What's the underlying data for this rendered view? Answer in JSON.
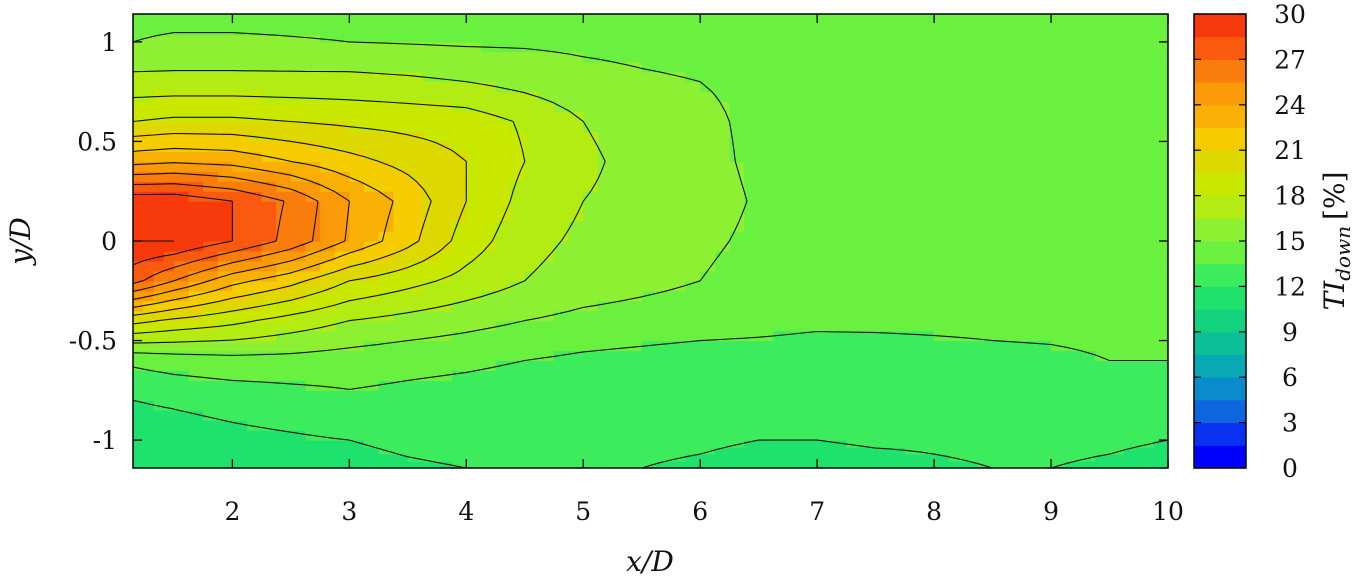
{
  "chart_data": {
    "type": "heatmap",
    "subtype": "filled-contour",
    "title": "",
    "xlabel": "x/D",
    "ylabel": "y/D",
    "colorbar_label": "TI_down [%]",
    "colorbar_label_main": "TI",
    "colorbar_label_sub": "down",
    "colorbar_label_unit": "[%]",
    "xlim": [
      1.15,
      10.0
    ],
    "ylim": [
      -1.14,
      1.14
    ],
    "x_ticks": [
      2,
      3,
      4,
      5,
      6,
      7,
      8,
      9,
      10
    ],
    "x_tick_labels": [
      "2",
      "3",
      "4",
      "5",
      "6",
      "7",
      "8",
      "9",
      "10"
    ],
    "y_ticks": [
      1,
      0.5,
      0,
      -0.5,
      -1
    ],
    "y_tick_labels": [
      "1",
      "0.5",
      "0",
      "-0.5",
      "-1"
    ],
    "colorbar_range": [
      0,
      30
    ],
    "colorbar_ticks": [
      30,
      27,
      24,
      21,
      18,
      15,
      12,
      9,
      6,
      3,
      0
    ],
    "colorbar_tick_labels": [
      "30",
      "27",
      "24",
      "21",
      "18",
      "15",
      "12",
      "9",
      "6",
      "3",
      "0"
    ],
    "contour_levels": [
      0,
      1.5,
      3,
      4.5,
      6,
      7.5,
      9,
      10.5,
      12,
      13.5,
      15,
      16.5,
      18,
      19.5,
      21,
      22.5,
      24,
      25.5,
      27,
      28.5,
      30
    ],
    "colors": [
      "#0000ff",
      "#0b32f0",
      "#0d66e0",
      "#0a8ccc",
      "#08a8b4",
      "#0cbf98",
      "#12d27e",
      "#1ee26c",
      "#3cec5c",
      "#6af03e",
      "#8ef033",
      "#b2ec12",
      "#c8e800",
      "#dcd800",
      "#f4cc00",
      "#f8b004",
      "#fb9a08",
      "#fa7c0c",
      "#f95a10",
      "#f63a0c",
      "#f20f0f"
    ],
    "x": [
      1.15,
      1.5,
      2.0,
      2.5,
      3.0,
      3.5,
      4.0,
      4.5,
      5.0,
      5.5,
      6.0,
      6.5,
      7.0,
      7.5,
      8.0,
      8.5,
      9.0,
      9.5,
      10.0
    ],
    "y": [
      -1.14,
      -1.0,
      -0.8,
      -0.6,
      -0.4,
      -0.2,
      0.0,
      0.2,
      0.4,
      0.6,
      0.8,
      1.0,
      1.14
    ],
    "z": [
      [
        10.8,
        10.8,
        11.0,
        11.3,
        11.5,
        11.8,
        12.0,
        12.2,
        12.0,
        12.0,
        11.8,
        11.5,
        11.3,
        11.5,
        11.8,
        12.0,
        12.0,
        11.8,
        11.5
      ],
      [
        11.2,
        11.3,
        11.6,
        11.8,
        12.0,
        12.3,
        12.5,
        12.5,
        12.3,
        12.3,
        12.2,
        12.0,
        12.0,
        12.2,
        12.2,
        12.3,
        12.3,
        12.2,
        12.0
      ],
      [
        12.0,
        12.2,
        12.5,
        12.8,
        13.2,
        13.0,
        12.8,
        12.6,
        12.5,
        12.5,
        12.4,
        12.4,
        12.3,
        12.5,
        12.5,
        12.6,
        12.6,
        12.5,
        12.5
      ],
      [
        13.8,
        14.2,
        14.5,
        14.5,
        14.3,
        14.0,
        13.8,
        13.5,
        13.2,
        13.0,
        12.8,
        12.8,
        12.7,
        12.8,
        13.0,
        13.2,
        13.3,
        13.5,
        13.5
      ],
      [
        20.0,
        19.2,
        18.4,
        17.4,
        16.5,
        16.0,
        15.5,
        15.0,
        14.6,
        14.4,
        14.2,
        14.0,
        13.8,
        13.8,
        13.8,
        13.8,
        13.8,
        13.8,
        13.8
      ],
      [
        27.5,
        25.5,
        23.0,
        21.5,
        19.5,
        18.5,
        17.5,
        16.5,
        15.8,
        15.4,
        15.0,
        14.6,
        14.2,
        14.0,
        13.9,
        13.9,
        13.9,
        13.9,
        13.9
      ],
      [
        30.0,
        30.0,
        28.5,
        26.5,
        23.8,
        21.5,
        18.8,
        17.0,
        16.2,
        15.8,
        15.2,
        14.8,
        14.5,
        14.2,
        14.0,
        14.0,
        14.0,
        14.0,
        14.0
      ],
      [
        29.5,
        29.5,
        28.5,
        26.8,
        24.0,
        22.0,
        19.5,
        17.5,
        16.5,
        16.0,
        15.4,
        14.9,
        14.6,
        14.3,
        14.2,
        14.2,
        14.2,
        14.2,
        14.2
      ],
      [
        23.5,
        23.8,
        23.5,
        22.5,
        21.5,
        20.5,
        19.5,
        18.0,
        16.8,
        16.0,
        15.3,
        14.8,
        14.5,
        14.3,
        14.2,
        14.2,
        14.2,
        14.2,
        14.2
      ],
      [
        19.5,
        19.8,
        19.8,
        19.5,
        19.2,
        19.0,
        18.8,
        17.8,
        16.5,
        15.8,
        15.2,
        14.8,
        14.5,
        14.3,
        14.2,
        14.2,
        14.2,
        14.2,
        14.2
      ],
      [
        17.0,
        17.0,
        17.0,
        17.0,
        17.0,
        16.8,
        16.5,
        16.0,
        15.5,
        15.2,
        15.0,
        14.8,
        14.6,
        14.5,
        14.4,
        14.3,
        14.3,
        14.3,
        14.3
      ],
      [
        15.0,
        15.2,
        15.2,
        15.1,
        15.0,
        14.9,
        14.8,
        14.8,
        14.7,
        14.6,
        14.5,
        14.5,
        14.5,
        14.4,
        14.4,
        14.3,
        14.3,
        14.3,
        14.3
      ],
      [
        14.6,
        14.6,
        14.6,
        14.6,
        14.6,
        14.5,
        14.5,
        14.5,
        14.4,
        14.4,
        14.4,
        14.3,
        14.3,
        14.3,
        14.3,
        14.3,
        14.3,
        14.3,
        14.3
      ]
    ],
    "grid": false,
    "legend": "colorbar-right"
  }
}
